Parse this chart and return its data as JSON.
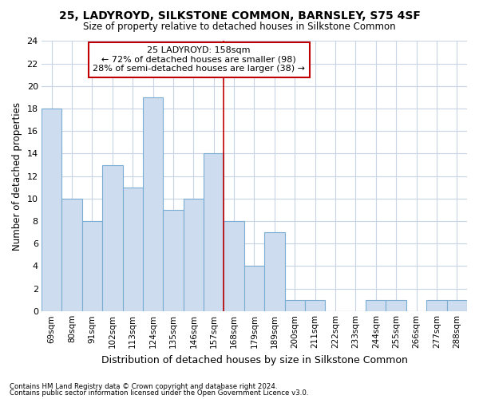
{
  "title": "25, LADYROYD, SILKSTONE COMMON, BARNSLEY, S75 4SF",
  "subtitle": "Size of property relative to detached houses in Silkstone Common",
  "xlabel": "Distribution of detached houses by size in Silkstone Common",
  "ylabel": "Number of detached properties",
  "footer1": "Contains HM Land Registry data © Crown copyright and database right 2024.",
  "footer2": "Contains public sector information licensed under the Open Government Licence v3.0.",
  "bar_labels": [
    "69sqm",
    "80sqm",
    "91sqm",
    "102sqm",
    "113sqm",
    "124sqm",
    "135sqm",
    "146sqm",
    "157sqm",
    "168sqm",
    "179sqm",
    "189sqm",
    "200sqm",
    "211sqm",
    "222sqm",
    "233sqm",
    "244sqm",
    "255sqm",
    "266sqm",
    "277sqm",
    "288sqm"
  ],
  "bar_values": [
    18,
    10,
    8,
    13,
    11,
    19,
    9,
    10,
    14,
    8,
    4,
    7,
    1,
    1,
    0,
    0,
    1,
    1,
    0,
    1,
    1
  ],
  "bar_color": "#cddcee",
  "bar_edge_color": "#7aadd4",
  "grid_color": "#c8d4e4",
  "background_color": "#ffffff",
  "ref_line_color": "#c00000",
  "ref_line_index": 8,
  "annotation_text": "25 LADYROYD: 158sqm\n← 72% of detached houses are smaller (98)\n28% of semi-detached houses are larger (38) →",
  "annotation_box_facecolor": "#ffffff",
  "annotation_box_edgecolor": "#c00000",
  "ylim": [
    0,
    24
  ],
  "yticks": [
    0,
    2,
    4,
    6,
    8,
    10,
    12,
    14,
    16,
    18,
    20,
    22,
    24
  ]
}
